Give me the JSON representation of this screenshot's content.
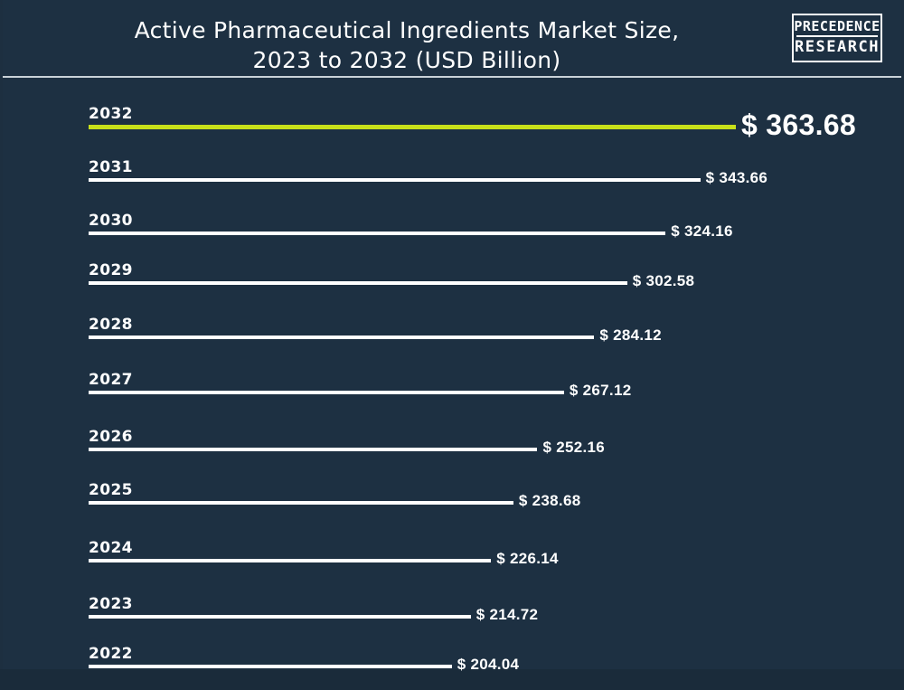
{
  "header": {
    "title_line1": "Active Pharmaceutical Ingredients Market Size,",
    "title_line2": "2023 to 2032 (USD Billion)",
    "logo_line1": "PRECEDENCE",
    "logo_line2": "RESEARCH"
  },
  "colors": {
    "background": "#1d3042",
    "bar": "#ffffff",
    "highlight_bar": "#c8e01a",
    "text": "#ffffff"
  },
  "chart_data": {
    "type": "bar",
    "orientation": "horizontal",
    "title": "Active Pharmaceutical Ingredients Market Size, 2023 to 2032 (USD Billion)",
    "categories": [
      "2032",
      "2031",
      "2030",
      "2029",
      "2028",
      "2027",
      "2026",
      "2025",
      "2024",
      "2023",
      "2022"
    ],
    "values": [
      363.68,
      343.66,
      324.16,
      302.58,
      284.12,
      267.12,
      252.16,
      238.68,
      226.14,
      214.72,
      204.04
    ],
    "labels": [
      "$ 363.68",
      "$ 343.66",
      "$ 324.16",
      "$ 302.58",
      "$ 284.12",
      "$ 267.12",
      "$ 252.16",
      "$ 238.68",
      "$ 226.14",
      "$ 214.72",
      "$ 204.04"
    ],
    "highlight": "2032",
    "xlim": [
      0,
      363.68
    ],
    "grid": false,
    "legend": "none"
  }
}
